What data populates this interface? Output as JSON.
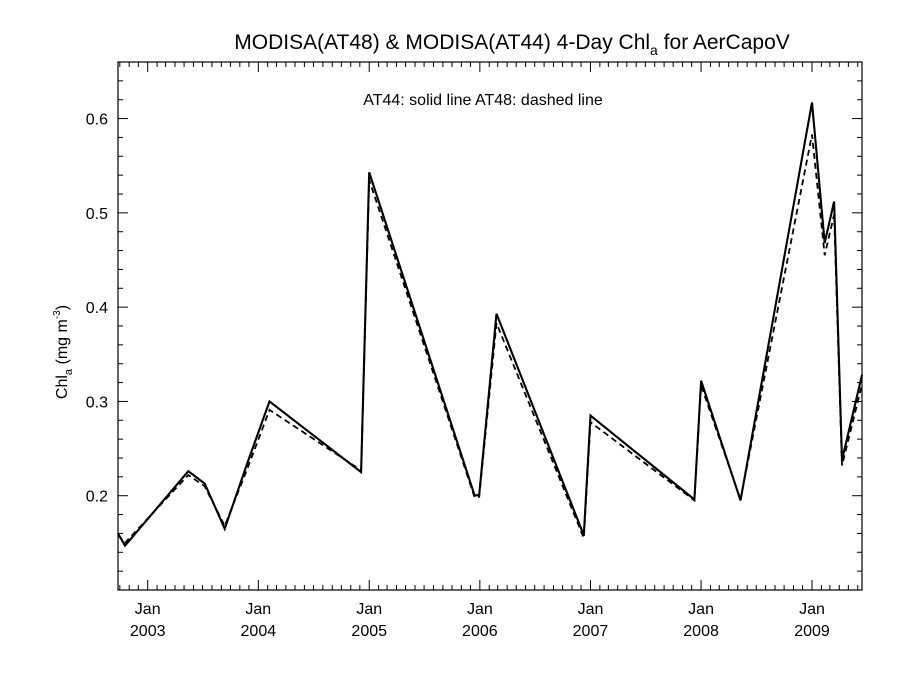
{
  "chart_data": {
    "type": "line",
    "title": {
      "prefix": "MODISA(AT48) & MODISA(AT44) 4-Day Chl",
      "subscript": "a",
      "suffix": " for AerCapoV"
    },
    "ylabel": {
      "prefix": "Chl",
      "subscript": "a",
      "units_open": " (mg m",
      "superscript": "-3",
      "units_close": ")"
    },
    "annotation": "AT44: solid line   AT48: dashed line",
    "xlim": [
      "2002-09-25",
      "2009-06-15"
    ],
    "ylim": [
      0.1,
      0.66
    ],
    "yticks": [
      0.2,
      0.3,
      0.4,
      0.5,
      0.6
    ],
    "ytick_labels": [
      "0.2",
      "0.3",
      "0.4",
      "0.5",
      "0.6"
    ],
    "xticks": [
      "2003-01-01",
      "2004-01-01",
      "2005-01-01",
      "2006-01-01",
      "2007-01-01",
      "2008-01-01",
      "2009-01-01"
    ],
    "xtick_labels_month": [
      "Jan",
      "Jan",
      "Jan",
      "Jan",
      "Jan",
      "Jan",
      "Jan"
    ],
    "xtick_labels_year": [
      "2003",
      "2004",
      "2005",
      "2006",
      "2007",
      "2008",
      "2009"
    ],
    "grid": false,
    "series": [
      {
        "name": "AT44",
        "style": "solid",
        "points": [
          [
            "2002-09-25",
            0.16
          ],
          [
            "2002-10-18",
            0.147
          ],
          [
            "2003-05-15",
            0.226
          ],
          [
            "2003-07-08",
            0.213
          ],
          [
            "2003-09-12",
            0.165
          ],
          [
            "2003-11-25",
            0.234
          ],
          [
            "2004-02-07",
            0.3
          ],
          [
            "2004-12-05",
            0.225
          ],
          [
            "2005-01-01",
            0.543
          ],
          [
            "2005-12-15",
            0.2
          ],
          [
            "2005-12-30",
            0.201
          ],
          [
            "2006-02-25",
            0.393
          ],
          [
            "2006-12-10",
            0.158
          ],
          [
            "2007-01-01",
            0.285
          ],
          [
            "2007-12-10",
            0.196
          ],
          [
            "2008-01-01",
            0.322
          ],
          [
            "2008-05-10",
            0.195
          ],
          [
            "2009-01-01",
            0.617
          ],
          [
            "2009-02-12",
            0.468
          ],
          [
            "2009-03-15",
            0.512
          ],
          [
            "2009-04-10",
            0.238
          ],
          [
            "2009-06-15",
            0.328
          ]
        ]
      },
      {
        "name": "AT48",
        "style": "dashed",
        "points": [
          [
            "2002-09-25",
            0.158
          ],
          [
            "2002-10-18",
            0.15
          ],
          [
            "2003-05-15",
            0.222
          ],
          [
            "2003-07-08",
            0.21
          ],
          [
            "2003-09-12",
            0.168
          ],
          [
            "2003-11-25",
            0.228
          ],
          [
            "2004-02-07",
            0.291
          ],
          [
            "2004-12-05",
            0.227
          ],
          [
            "2005-01-01",
            0.535
          ],
          [
            "2005-12-15",
            0.198
          ],
          [
            "2005-12-30",
            0.199
          ],
          [
            "2006-02-25",
            0.383
          ],
          [
            "2006-12-10",
            0.155
          ],
          [
            "2007-01-01",
            0.278
          ],
          [
            "2007-12-10",
            0.195
          ],
          [
            "2008-01-01",
            0.317
          ],
          [
            "2008-05-10",
            0.196
          ],
          [
            "2009-01-01",
            0.583
          ],
          [
            "2009-02-12",
            0.455
          ],
          [
            "2009-03-15",
            0.498
          ],
          [
            "2009-04-10",
            0.232
          ],
          [
            "2009-06-15",
            0.318
          ]
        ]
      }
    ]
  }
}
